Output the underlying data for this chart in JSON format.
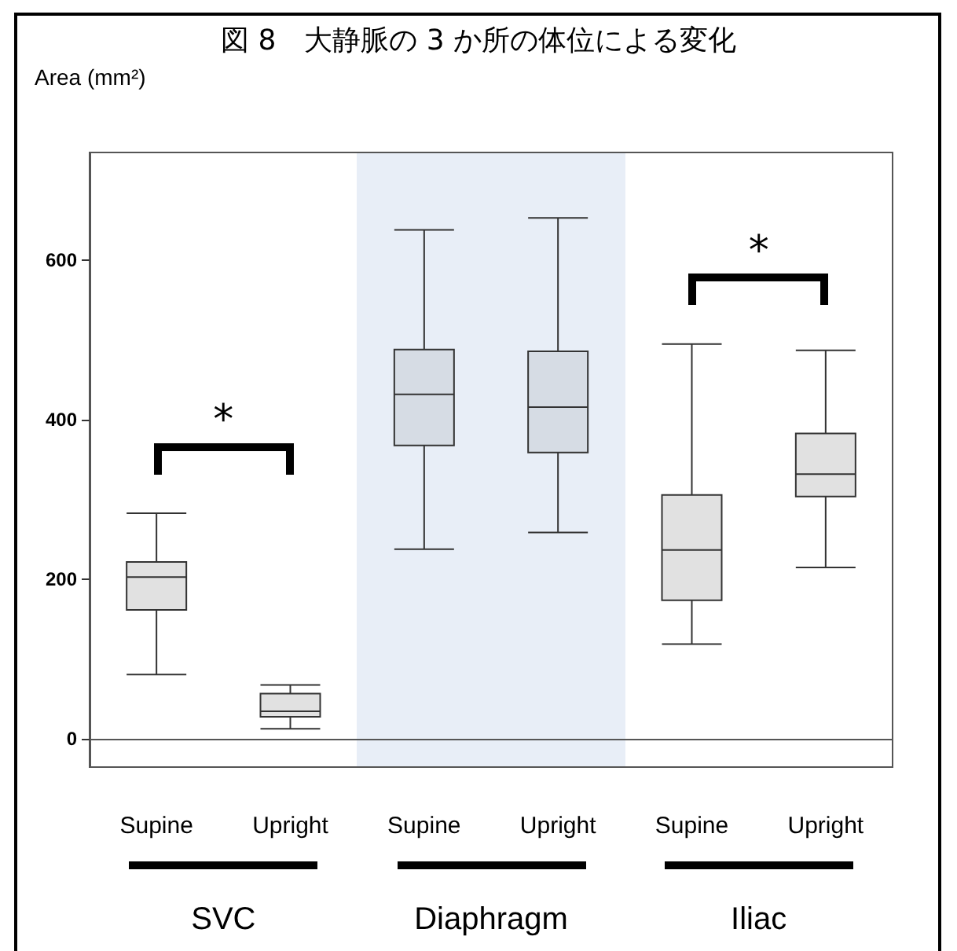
{
  "chart_data": {
    "type": "box",
    "title": "図 8　大静脈の 3 か所の体位による変化",
    "ylabel": "Area (mm²)",
    "categories": [
      "Supine",
      "Upright",
      "Supine",
      "Upright",
      "Supine",
      "Upright"
    ],
    "boxes": [
      {
        "low": 81,
        "q1": 162,
        "median": 203,
        "q3": 222,
        "high": 283
      },
      {
        "low": 13,
        "q1": 28,
        "median": 35,
        "q3": 57,
        "high": 68
      },
      {
        "low": 238,
        "q1": 368,
        "median": 432,
        "q3": 488,
        "high": 638
      },
      {
        "low": 259,
        "q1": 359,
        "median": 416,
        "q3": 486,
        "high": 653
      },
      {
        "low": 119,
        "q1": 174,
        "median": 237,
        "q3": 306,
        "high": 495
      },
      {
        "low": 215,
        "q1": 304,
        "median": 332,
        "q3": 383,
        "high": 487
      }
    ],
    "colors": [
      "#e1e1e1",
      "#e1e1e1",
      "#d6dce4",
      "#d6dce4",
      "#e1e1e1",
      "#e1e1e1"
    ],
    "ylim": [
      -35,
      735
    ],
    "yticks": [
      0,
      200,
      400,
      600
    ],
    "annotations": [
      "SVC",
      "Diaphragm",
      "Iliac",
      "*",
      "*"
    ]
  }
}
